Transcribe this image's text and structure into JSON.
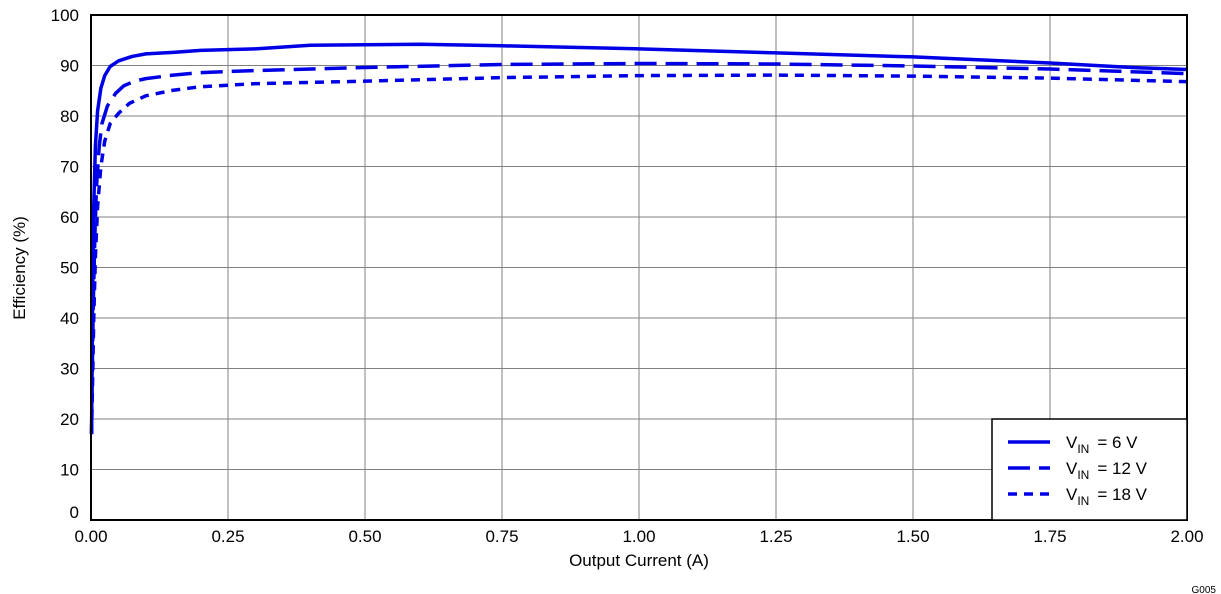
{
  "chart_data": {
    "type": "line",
    "title": "",
    "xlabel": "Output Current (A)",
    "ylabel": "Efficiency (%)",
    "xlim": [
      0,
      2
    ],
    "ylim": [
      0,
      100
    ],
    "x_ticks": [
      "0.00",
      "0.25",
      "0.50",
      "0.75",
      "1.00",
      "1.25",
      "1.50",
      "1.75",
      "2.00"
    ],
    "y_ticks": [
      "0",
      "10",
      "20",
      "30",
      "40",
      "50",
      "60",
      "70",
      "80",
      "90",
      "100"
    ],
    "grid": true,
    "legend_position": "bottom-right",
    "color": "#0000e6",
    "series": [
      {
        "name": "VIN = 6 V",
        "legend_main": "V",
        "legend_sub": "IN",
        "legend_value": "=  6 V",
        "style": "solid",
        "points": [
          [
            0.001,
            17
          ],
          [
            0.002,
            30
          ],
          [
            0.003,
            45
          ],
          [
            0.005,
            62
          ],
          [
            0.008,
            74
          ],
          [
            0.012,
            81
          ],
          [
            0.018,
            85.5
          ],
          [
            0.025,
            88
          ],
          [
            0.035,
            89.8
          ],
          [
            0.05,
            90.9
          ],
          [
            0.075,
            91.8
          ],
          [
            0.1,
            92.3
          ],
          [
            0.15,
            92.6
          ],
          [
            0.2,
            93
          ],
          [
            0.3,
            93.3
          ],
          [
            0.4,
            94
          ],
          [
            0.5,
            94.1
          ],
          [
            0.6,
            94.2
          ],
          [
            0.75,
            93.9
          ],
          [
            1.0,
            93.3
          ],
          [
            1.25,
            92.5
          ],
          [
            1.5,
            91.7
          ],
          [
            1.75,
            90.5
          ],
          [
            1.9,
            89.6
          ],
          [
            2.0,
            89.2
          ]
        ]
      },
      {
        "name": "VIN = 12 V",
        "legend_main": "V",
        "legend_sub": "IN",
        "legend_value": "=  12 V",
        "style": "dashed",
        "points": [
          [
            0.001,
            17
          ],
          [
            0.002,
            27
          ],
          [
            0.004,
            42
          ],
          [
            0.007,
            56
          ],
          [
            0.01,
            66
          ],
          [
            0.015,
            74
          ],
          [
            0.02,
            78.5
          ],
          [
            0.03,
            82
          ],
          [
            0.045,
            84.5
          ],
          [
            0.06,
            86
          ],
          [
            0.08,
            86.9
          ],
          [
            0.1,
            87.4
          ],
          [
            0.15,
            88.1
          ],
          [
            0.2,
            88.6
          ],
          [
            0.3,
            89
          ],
          [
            0.5,
            89.6
          ],
          [
            0.75,
            90.2
          ],
          [
            1.0,
            90.4
          ],
          [
            1.25,
            90.3
          ],
          [
            1.5,
            89.9
          ],
          [
            1.75,
            89.3
          ],
          [
            2.0,
            88.4
          ]
        ]
      },
      {
        "name": "VIN = 18 V",
        "legend_main": "V",
        "legend_sub": "IN",
        "legend_value": "=  18 V",
        "style": "dotted",
        "points": [
          [
            0.001,
            17
          ],
          [
            0.003,
            28
          ],
          [
            0.005,
            40
          ],
          [
            0.008,
            52
          ],
          [
            0.012,
            62
          ],
          [
            0.018,
            70
          ],
          [
            0.025,
            75
          ],
          [
            0.035,
            78.5
          ],
          [
            0.05,
            80.5
          ],
          [
            0.07,
            82.5
          ],
          [
            0.1,
            84
          ],
          [
            0.15,
            85.1
          ],
          [
            0.2,
            85.8
          ],
          [
            0.3,
            86.4
          ],
          [
            0.5,
            86.9
          ],
          [
            0.75,
            87.6
          ],
          [
            1.0,
            88
          ],
          [
            1.25,
            88.1
          ],
          [
            1.5,
            87.9
          ],
          [
            1.75,
            87.5
          ],
          [
            2.0,
            86.8
          ]
        ]
      }
    ]
  },
  "figure_code": "G005"
}
